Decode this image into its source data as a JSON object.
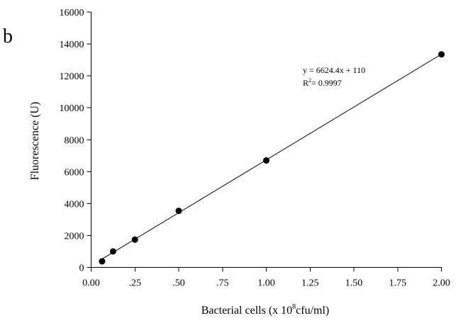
{
  "panel_label": "b",
  "chart_data": {
    "type": "scatter",
    "x": [
      0.0625,
      0.125,
      0.25,
      0.5,
      1.0,
      2.0
    ],
    "y": [
      380,
      1000,
      1740,
      3540,
      6700,
      13350
    ],
    "xlabel_prefix": "Bacterial cells (x 10",
    "xlabel_superscript": "8",
    "xlabel_suffix": "cfu/ml)",
    "ylabel": "Fluorescence (U)",
    "xlim": [
      0,
      2.0
    ],
    "ylim": [
      0,
      16000
    ],
    "xticks": [
      0.0,
      0.25,
      0.5,
      0.75,
      1.0,
      1.25,
      1.5,
      1.75,
      2.0
    ],
    "xtick_labels": [
      "0.00",
      ".25",
      ".50",
      ".75",
      "1.00",
      "1.25",
      "1.50",
      "1.75",
      "2.00"
    ],
    "yticks": [
      0,
      2000,
      4000,
      6000,
      8000,
      10000,
      12000,
      14000,
      16000
    ],
    "ytick_labels": [
      "0",
      "2000",
      "4000",
      "6000",
      "8000",
      "10000",
      "12000",
      "14000",
      "16000"
    ],
    "fit_line": {
      "slope": 6624.4,
      "intercept": 110,
      "x_range": [
        0.0625,
        2.0
      ]
    },
    "annotation": {
      "equation": "y = 6624.4x + 110",
      "r2_prefix": "R",
      "r2_superscript": "2",
      "r2_value": "= 0.9997"
    },
    "grid": false,
    "legend": "none",
    "colors": {
      "points": "#000000",
      "line": "#000000",
      "axes": "#000000",
      "background": "#ffffff"
    }
  }
}
